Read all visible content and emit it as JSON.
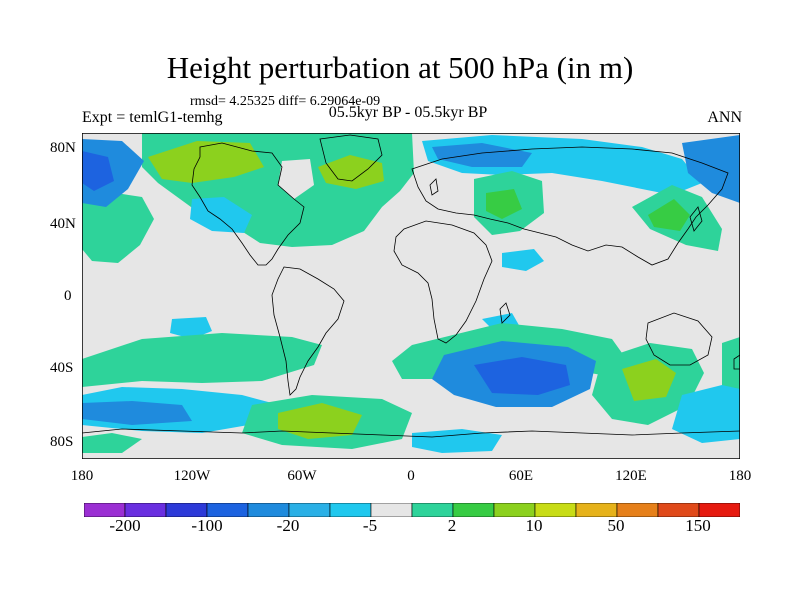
{
  "title": "Height perturbation at 500 hPa (in m)",
  "stats": "rmsd= 4.25325 diff= 6.29064e-09",
  "experiment": "Expt = temlG1-temhg",
  "period": "05.5kyr BP - 05.5kyr BP",
  "season": "ANN",
  "lat_ticks": [
    "80N",
    "40N",
    "0",
    "40S",
    "80S"
  ],
  "lon_ticks": [
    "180",
    "120W",
    "60W",
    "0",
    "60E",
    "120E",
    "180"
  ],
  "colorbar": {
    "labels": [
      "-200",
      "-100",
      "-20",
      "-5",
      "2",
      "10",
      "50",
      "150"
    ],
    "colors": [
      "#9b2fd3",
      "#6a2fe0",
      "#2d3ad8",
      "#1d63e0",
      "#1f8bdd",
      "#2ab0e6",
      "#20c8ee",
      "#e6e6e6",
      "#2ed39a",
      "#37cc44",
      "#8cd11e",
      "#c8dc16",
      "#e6b21a",
      "#e6801a",
      "#e04a1a",
      "#e61a10"
    ]
  },
  "map": {
    "background": "#e6e6e6",
    "coast_color": "#000000"
  }
}
